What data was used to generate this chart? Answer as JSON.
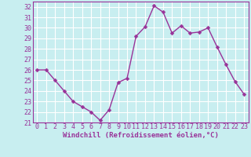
{
  "x": [
    0,
    1,
    2,
    3,
    4,
    5,
    6,
    7,
    8,
    9,
    10,
    11,
    12,
    13,
    14,
    15,
    16,
    17,
    18,
    19,
    20,
    21,
    22,
    23
  ],
  "y": [
    26,
    26,
    25,
    24,
    23,
    22.5,
    22,
    21.2,
    22.2,
    24.8,
    25.2,
    29.2,
    30.1,
    32.1,
    31.5,
    29.5,
    30.2,
    29.5,
    29.6,
    30.0,
    28.2,
    26.5,
    24.9,
    23.7
  ],
  "line_color": "#993399",
  "marker": "D",
  "marker_size": 2.5,
  "xlabel": "Windchill (Refroidissement éolien,°C)",
  "xlim": [
    -0.5,
    23.5
  ],
  "ylim": [
    21,
    32.5
  ],
  "yticks": [
    21,
    22,
    23,
    24,
    25,
    26,
    27,
    28,
    29,
    30,
    31,
    32
  ],
  "xticks": [
    0,
    1,
    2,
    3,
    4,
    5,
    6,
    7,
    8,
    9,
    10,
    11,
    12,
    13,
    14,
    15,
    16,
    17,
    18,
    19,
    20,
    21,
    22,
    23
  ],
  "background_color": "#c8eef0",
  "grid_color": "#aadddd",
  "tick_label_color": "#993399",
  "xlabel_color": "#993399",
  "xlabel_fontsize": 6.5,
  "tick_fontsize": 6.0,
  "line_width": 1.0
}
